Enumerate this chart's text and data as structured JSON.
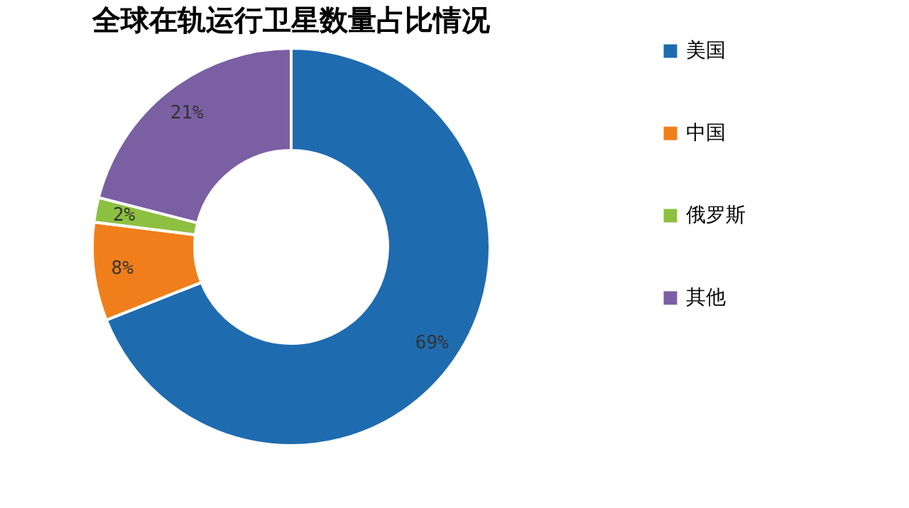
{
  "chart_data": {
    "type": "donut",
    "title": "全球在轨运行卫星数量占比情况",
    "categories": [
      "美国",
      "中国",
      "俄罗斯",
      "其他"
    ],
    "values": [
      69,
      8,
      2,
      21
    ],
    "colors": [
      "#1f6bb0",
      "#f07f1b",
      "#8dc040",
      "#7b5fa3"
    ],
    "value_labels": [
      "69%",
      "8%",
      "2%",
      "21%"
    ],
    "legend": "right"
  }
}
